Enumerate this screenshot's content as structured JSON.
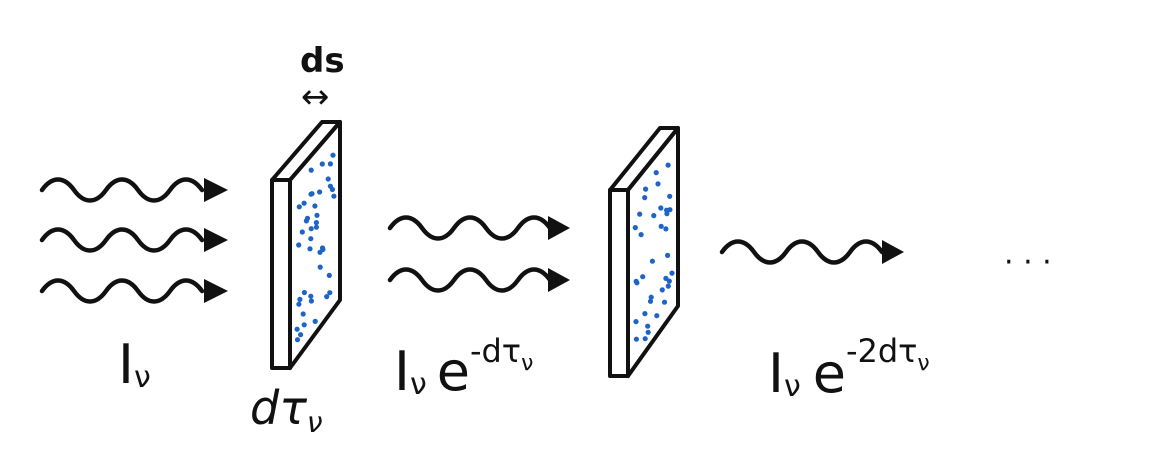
{
  "labels": {
    "ds": "ds",
    "ds_arrow": "↔",
    "dtau_subscript_symbol": "τ",
    "dtau_prefix": "d",
    "dtau_subscript": "ν",
    "i_nu_symbol": "I",
    "i_nu_subscript": "ν",
    "e_symbol": "e",
    "exp1": "-dτ",
    "exp1_sub": "ν",
    "exp2": "-2dτ",
    "exp2_sub": "ν",
    "ellipsis": "· · ·"
  },
  "colors": {
    "ink": "#111111",
    "absorber_dots": "#1e63c6"
  },
  "icons": [
    "wave-arrow-icon",
    "slab-icon"
  ]
}
